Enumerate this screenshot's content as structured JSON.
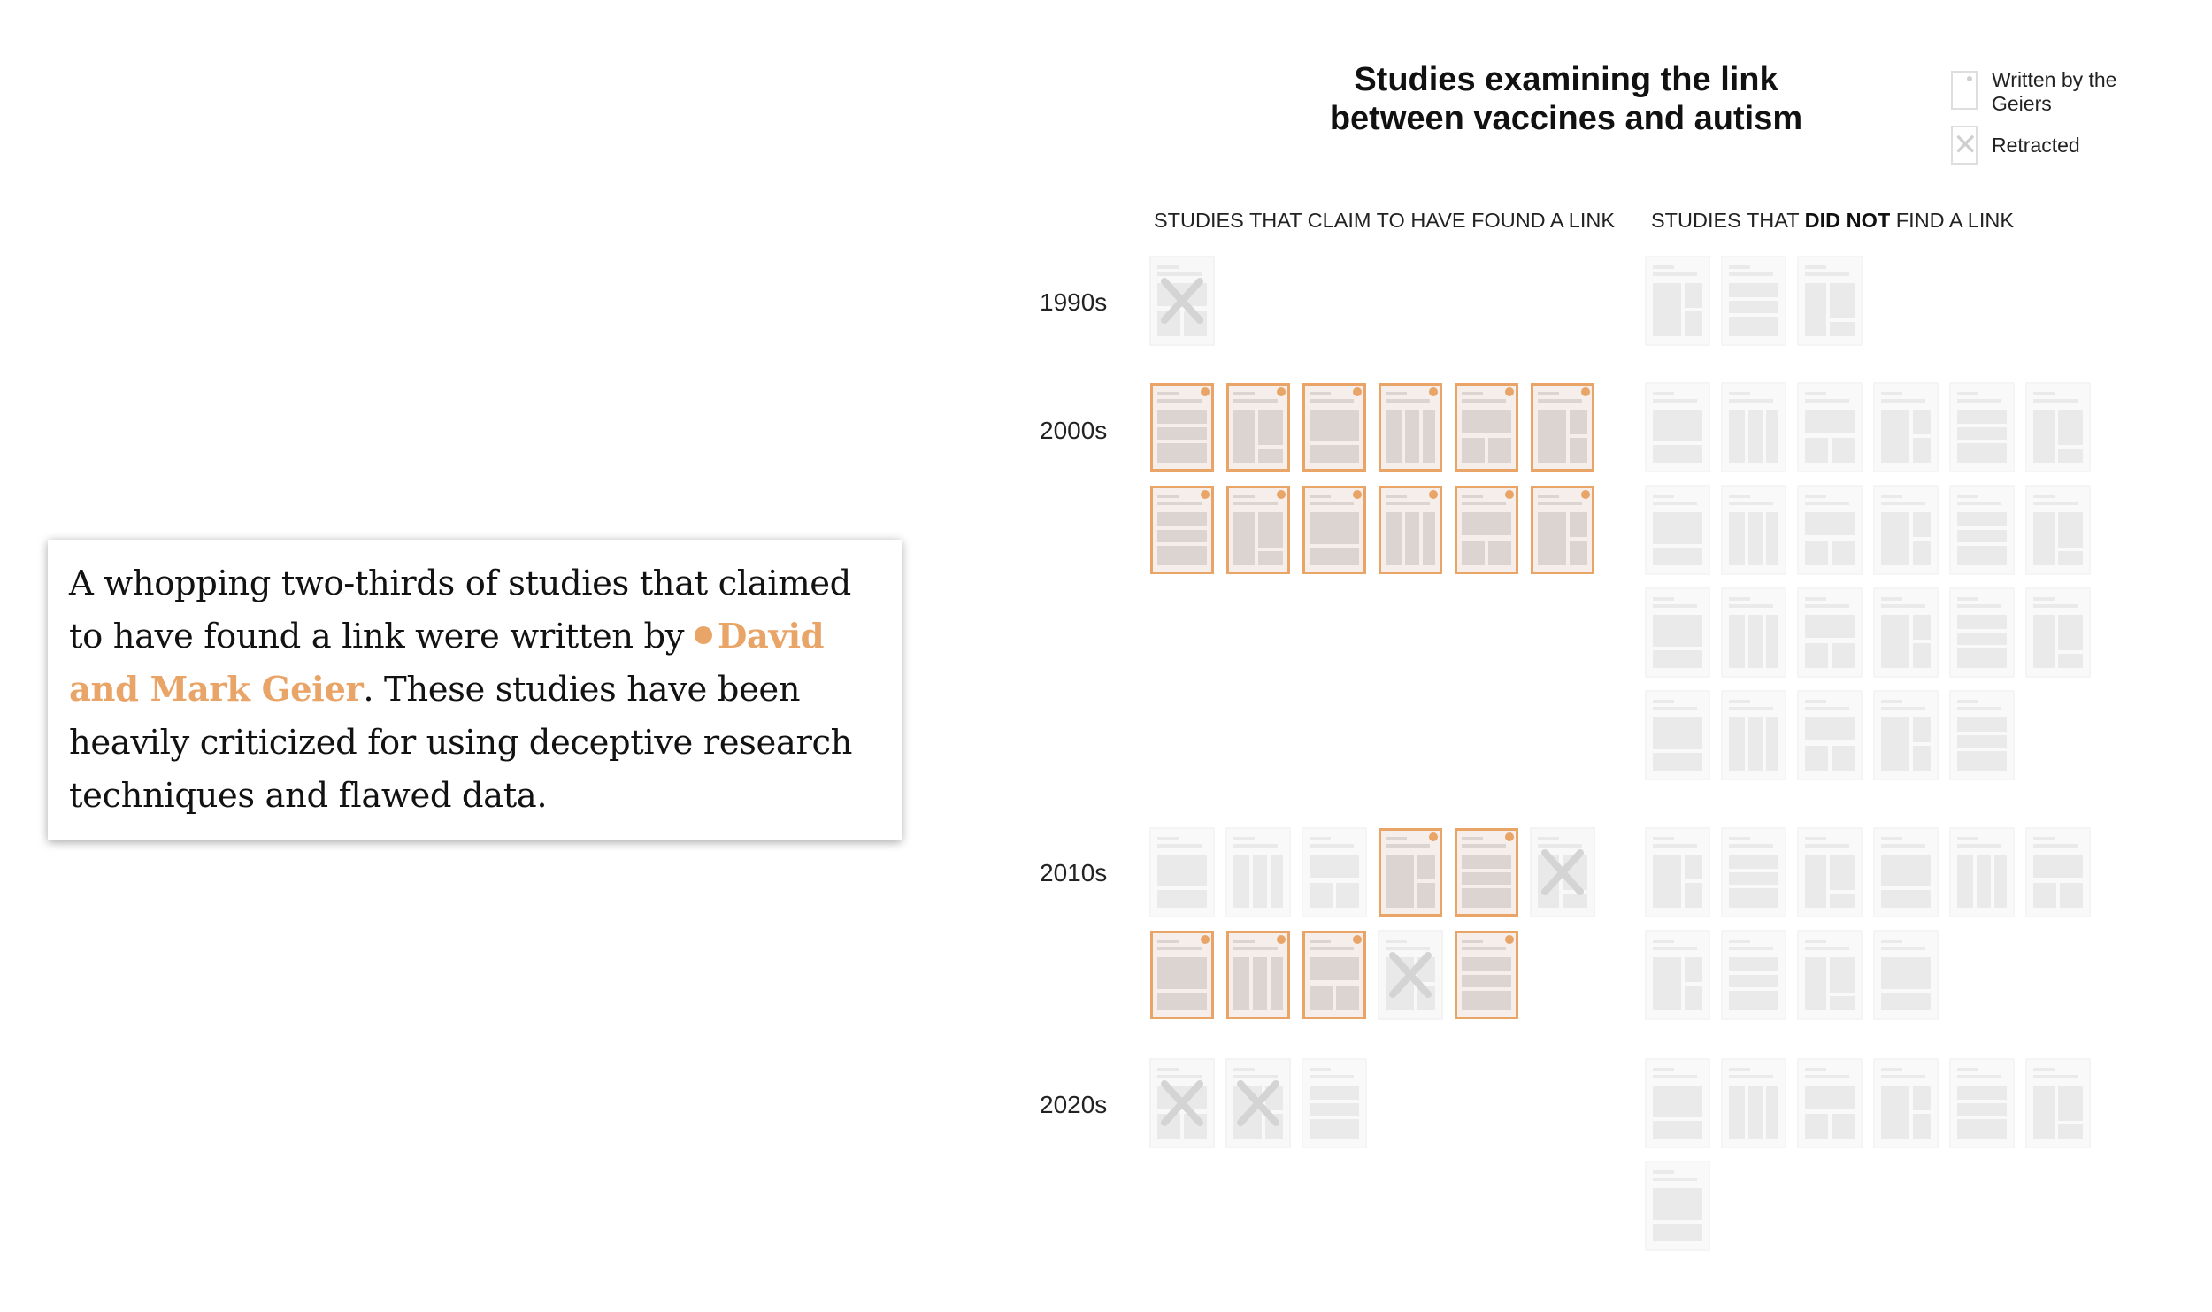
{
  "callout": {
    "text_before": "A whopping two-thirds of studies that claimed to have found a link were written by ",
    "highlight": "David and Mark Geier",
    "text_after": ". These studies have been heavily criticized for using deceptive research techniques and flawed data."
  },
  "title": "Studies examining the link between vaccines and autism",
  "legend": {
    "geiers_label": "Written by the Geiers",
    "retracted_label": "Retracted"
  },
  "columns": {
    "claim_header": "STUDIES THAT CLAIM TO HAVE FOUND A LINK",
    "no_link_prefix": "STUDIES THAT ",
    "no_link_emphasis": "DID NOT",
    "no_link_suffix": " FIND A LINK"
  },
  "colors": {
    "geier_accent": "#e9a467",
    "paper_muted": "#eeeeee",
    "paper_highlight": "#f5eeea",
    "block_highlight": "#dcd4d0",
    "block_muted": "#e4e4e4"
  },
  "chart_data": {
    "type": "unit-grid",
    "title": "Studies examining the link between vaccines and autism",
    "decades": [
      "1990s",
      "2000s",
      "2010s",
      "2020s"
    ],
    "per_row": 6,
    "claimed_link": [
      {
        "decade": "1990s",
        "studies": [
          {
            "geier": false,
            "retracted": true
          }
        ]
      },
      {
        "decade": "2000s",
        "studies": [
          {
            "geier": true,
            "retracted": false
          },
          {
            "geier": true,
            "retracted": false
          },
          {
            "geier": true,
            "retracted": false
          },
          {
            "geier": true,
            "retracted": false
          },
          {
            "geier": true,
            "retracted": false
          },
          {
            "geier": true,
            "retracted": false
          },
          {
            "geier": true,
            "retracted": false
          },
          {
            "geier": true,
            "retracted": false
          },
          {
            "geier": true,
            "retracted": false
          },
          {
            "geier": true,
            "retracted": false
          },
          {
            "geier": true,
            "retracted": false
          },
          {
            "geier": true,
            "retracted": false
          }
        ]
      },
      {
        "decade": "2010s",
        "studies": [
          {
            "geier": false,
            "retracted": false
          },
          {
            "geier": false,
            "retracted": false
          },
          {
            "geier": false,
            "retracted": false
          },
          {
            "geier": true,
            "retracted": false
          },
          {
            "geier": true,
            "retracted": false
          },
          {
            "geier": false,
            "retracted": true
          },
          {
            "geier": true,
            "retracted": false
          },
          {
            "geier": true,
            "retracted": false
          },
          {
            "geier": true,
            "retracted": false
          },
          {
            "geier": false,
            "retracted": true
          },
          {
            "geier": true,
            "retracted": false
          }
        ]
      },
      {
        "decade": "2020s",
        "studies": [
          {
            "geier": false,
            "retracted": true
          },
          {
            "geier": false,
            "retracted": true
          },
          {
            "geier": false,
            "retracted": false
          }
        ]
      }
    ],
    "no_link": [
      {
        "decade": "1990s",
        "count": 3
      },
      {
        "decade": "2000s",
        "count": 23
      },
      {
        "decade": "2010s",
        "count": 10
      },
      {
        "decade": "2020s",
        "count": 7
      }
    ]
  }
}
